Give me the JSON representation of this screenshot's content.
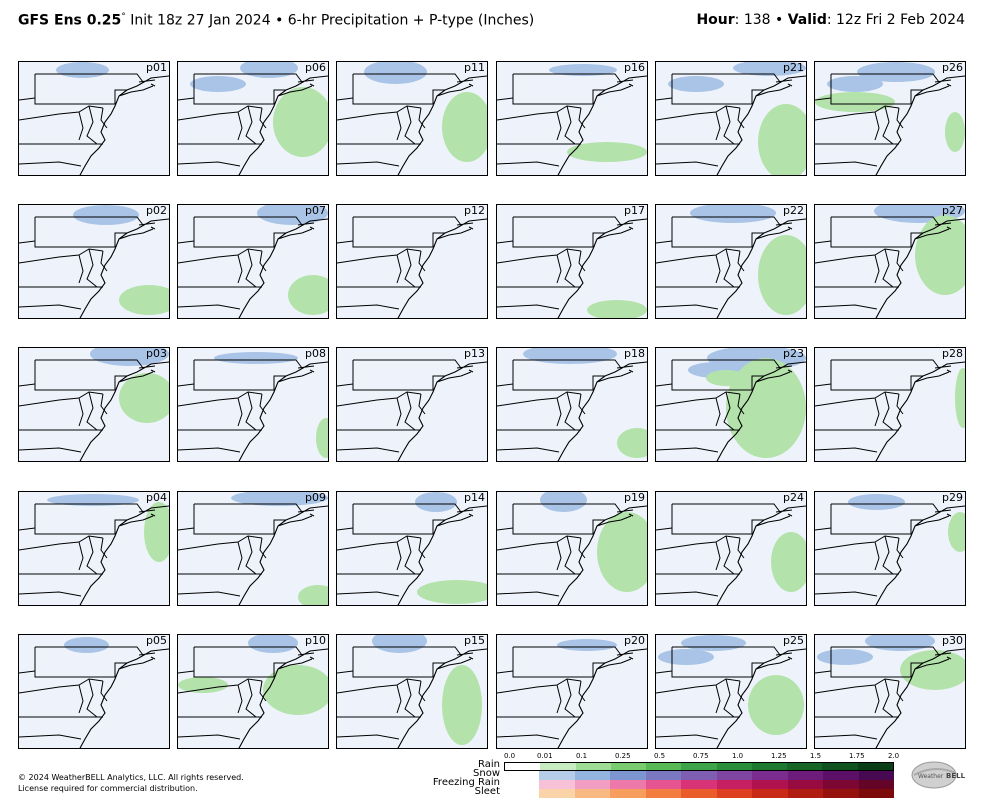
{
  "header": {
    "left_title": "GFS Ens 0.25",
    "left_degree": "°",
    "left_rest": " Init 18z 27 Jan 2024 • 6-hr Precipitation + P-type (Inches)",
    "right_hour_label": "Hour",
    "right_hour_value": ": 138 • ",
    "right_valid_label": "Valid",
    "right_valid_value": ": 12z Fri 2 Feb 2024"
  },
  "panels": [
    [
      "p01",
      "p06",
      "p11",
      "p16",
      "p21",
      "p26"
    ],
    [
      "p02",
      "p07",
      "p12",
      "p17",
      "p22",
      "p27"
    ],
    [
      "p03",
      "p08",
      "p13",
      "p18",
      "p23",
      "p28"
    ],
    [
      "p04",
      "p09",
      "p14",
      "p19",
      "p24",
      "p29"
    ],
    [
      "p05",
      "p10",
      "p15",
      "p20",
      "p25",
      "p30"
    ]
  ],
  "legend": {
    "ticks": [
      "0.0",
      "0.01",
      "0.1",
      "0.25",
      "0.5",
      "0.75",
      "1.0",
      "1.25",
      "1.5",
      "1.75",
      "2.0"
    ],
    "rows": [
      {
        "label": "Rain",
        "colors": [
          "#ffffff",
          "#c8ecc2",
          "#9fdc95",
          "#79cc6f",
          "#58b957",
          "#3da449",
          "#2a8e3b",
          "#1f7a31",
          "#176628",
          "#10521f",
          "#0a3e16"
        ]
      },
      {
        "label": "Snow",
        "colors": [
          "#ffffff",
          "#b5cde8",
          "#93b4df",
          "#7d95d0",
          "#7a78c0",
          "#7d5eb0",
          "#7f45a0",
          "#7a2d8e",
          "#6d1c7c",
          "#5b0f67",
          "#470952"
        ]
      },
      {
        "label": "Freezing Rain",
        "colors": [
          "#ffffff",
          "#f7c1d8",
          "#f29ec2",
          "#ec79aa",
          "#e55390",
          "#d83377",
          "#c61f62",
          "#b0124f",
          "#970b40",
          "#7d0733",
          "#640427"
        ]
      },
      {
        "label": "Sleet",
        "colors": [
          "#ffffff",
          "#fbd3a8",
          "#f9b982",
          "#f79d5e",
          "#f27d3f",
          "#ea5d2b",
          "#dd3f20",
          "#c92a18",
          "#b11c12",
          "#96120d",
          "#7c0a09"
        ]
      }
    ]
  },
  "footer": {
    "line1": "© 2024 WeatherBELL Analytics, LLC. All rights reserved.",
    "line2": "License required for commercial distribution."
  },
  "logo_text": "WeatherBELL",
  "colors": {
    "ocean": "#eef3fb",
    "snow": "#a9c4e6",
    "rain": "#b3e2aa"
  }
}
